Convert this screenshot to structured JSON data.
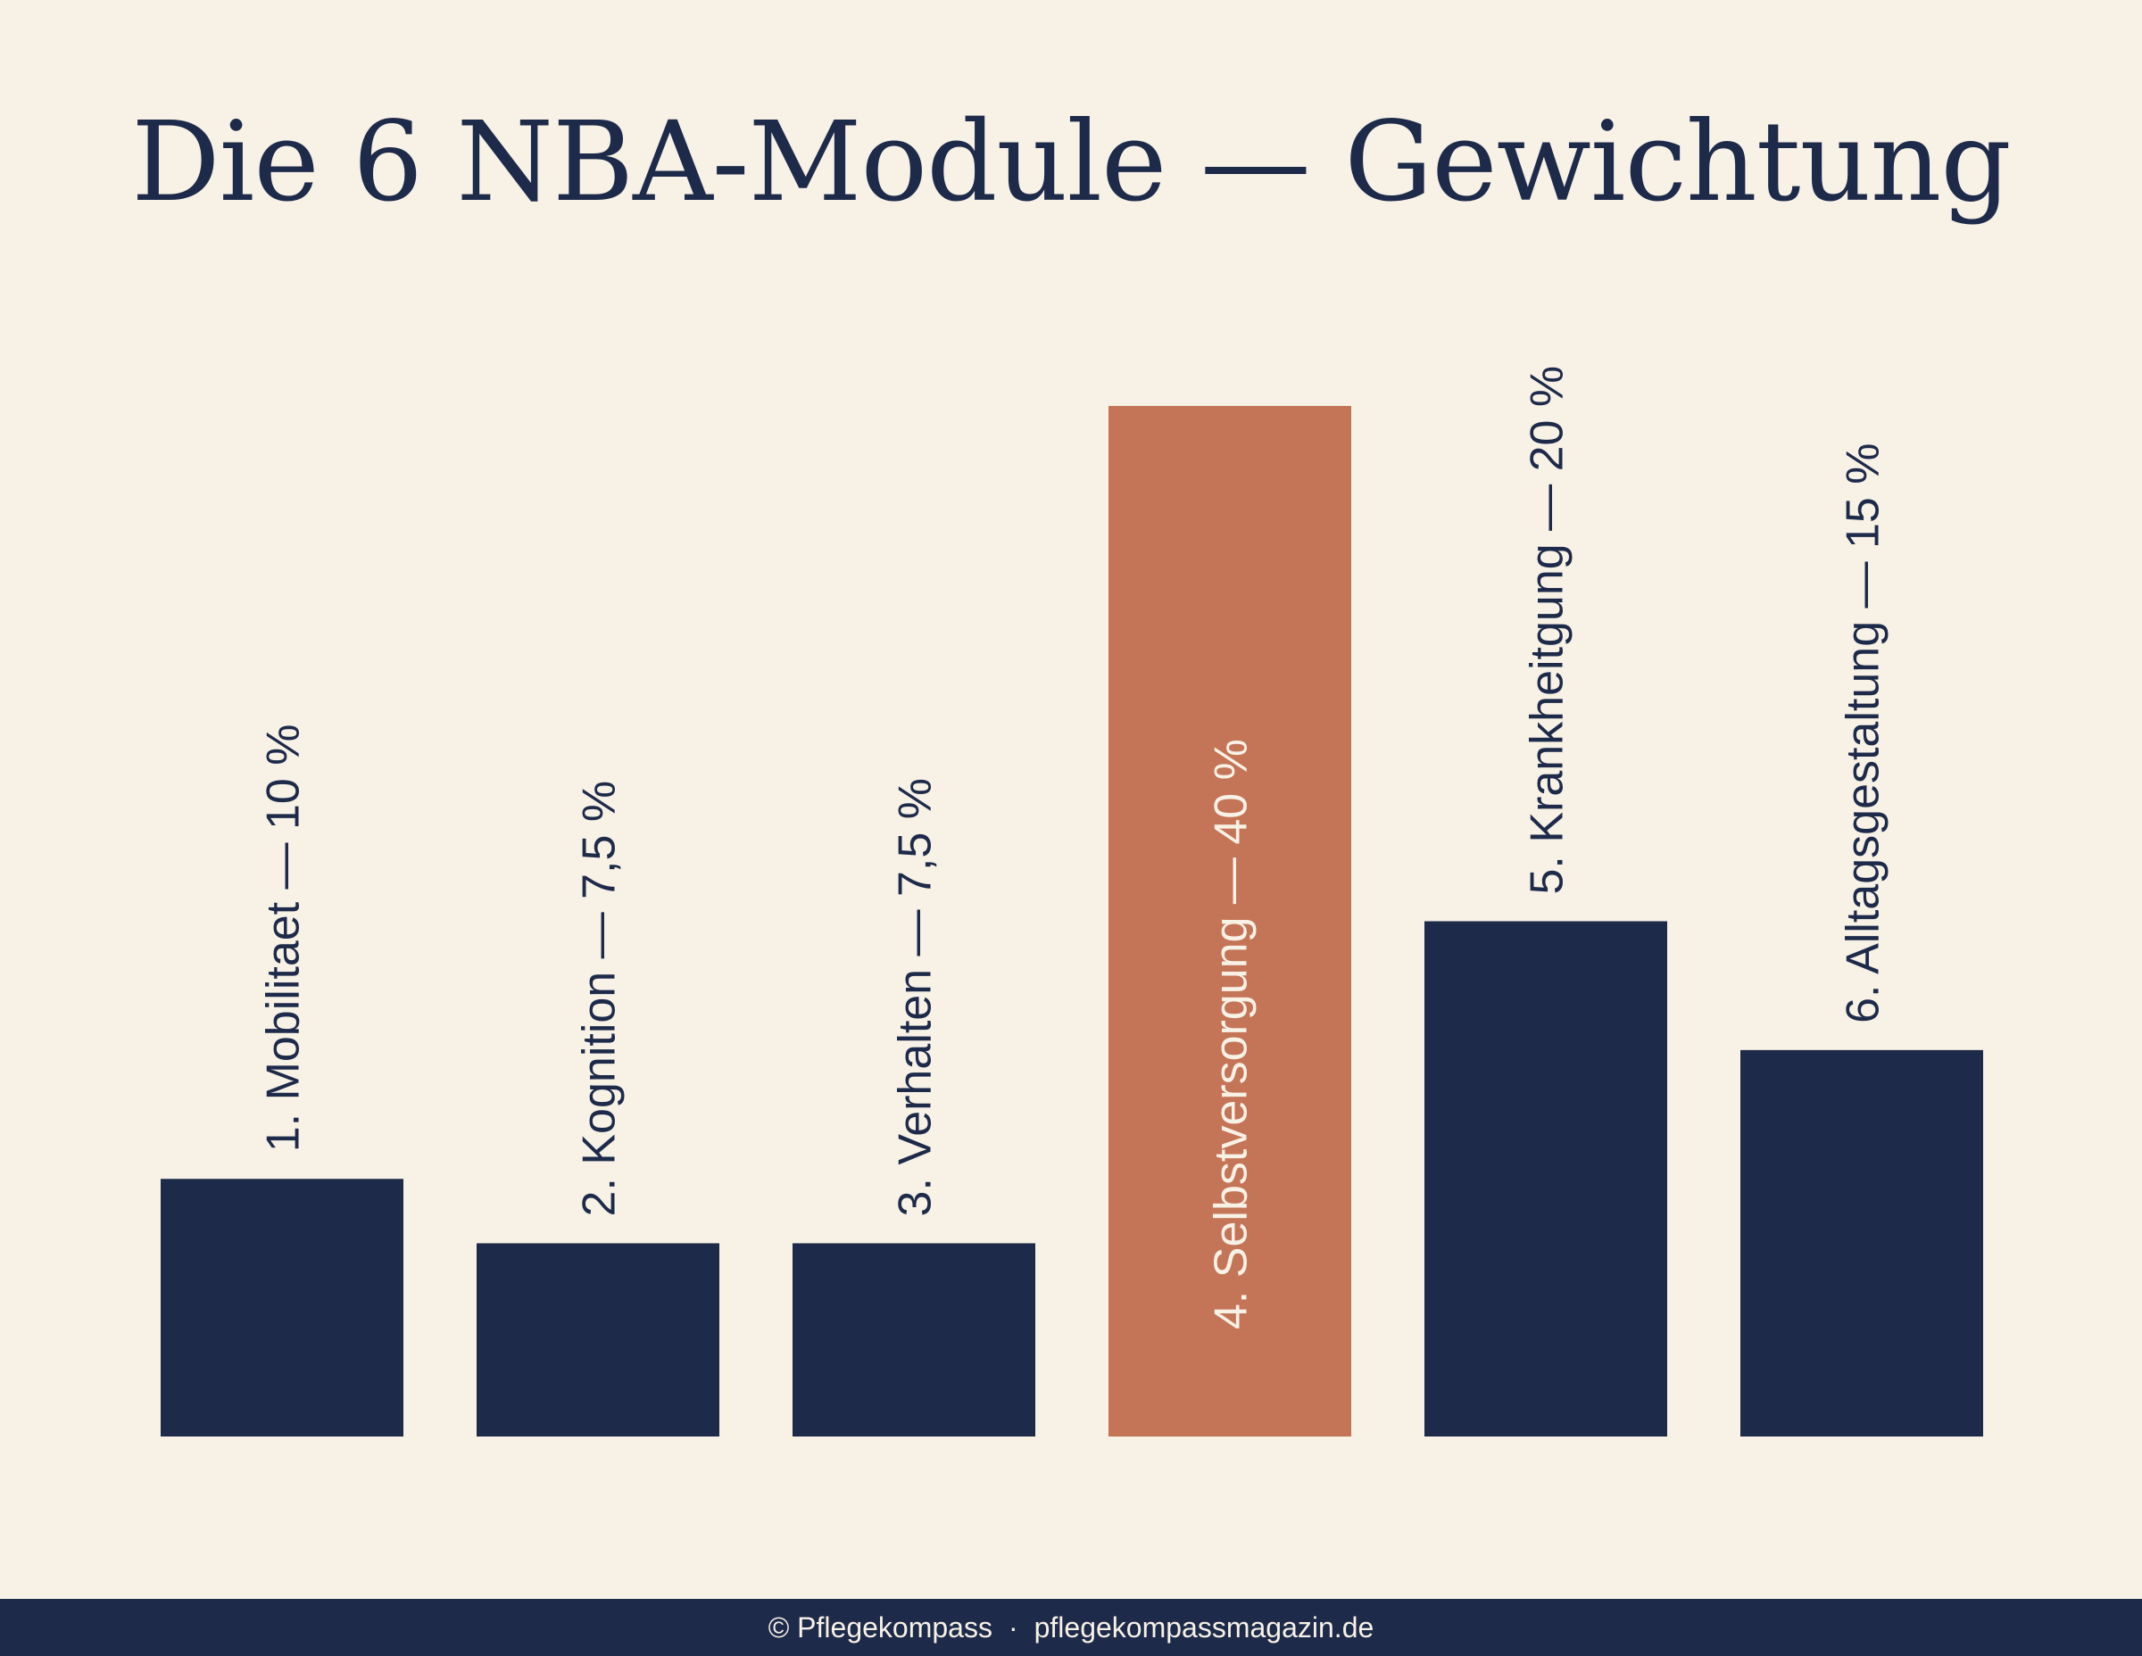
{
  "colors": {
    "background": "#f7f1e6",
    "bar": "#1e2a4a",
    "highlight": "#c47457",
    "label_dark": "#1e2a4a",
    "label_light": "#f7f1e6",
    "footer_bg": "#1e2a4a",
    "footer_text": "#f7f1e6"
  },
  "footer": {
    "copyright": "© Pflegekompass",
    "separator": "·",
    "website": "pflegekompassmagazin.de"
  },
  "chart_data": {
    "type": "bar",
    "title": "Die 6 NBA-Module — Gewichtung",
    "categories": [
      "1. Mobilitaet — 10 %",
      "2. Kognition — 7,5 %",
      "3. Verhalten — 7,5 %",
      "4. Selbstversorgung — 40 %",
      "5. Krankheitgung — 20 %",
      "6. Alltagsgestaltung — 15 %"
    ],
    "values": [
      10,
      7.5,
      7.5,
      40,
      20,
      15
    ],
    "highlight_index": 3,
    "ylim": [
      0,
      40
    ],
    "grid": false,
    "legend": "none"
  }
}
